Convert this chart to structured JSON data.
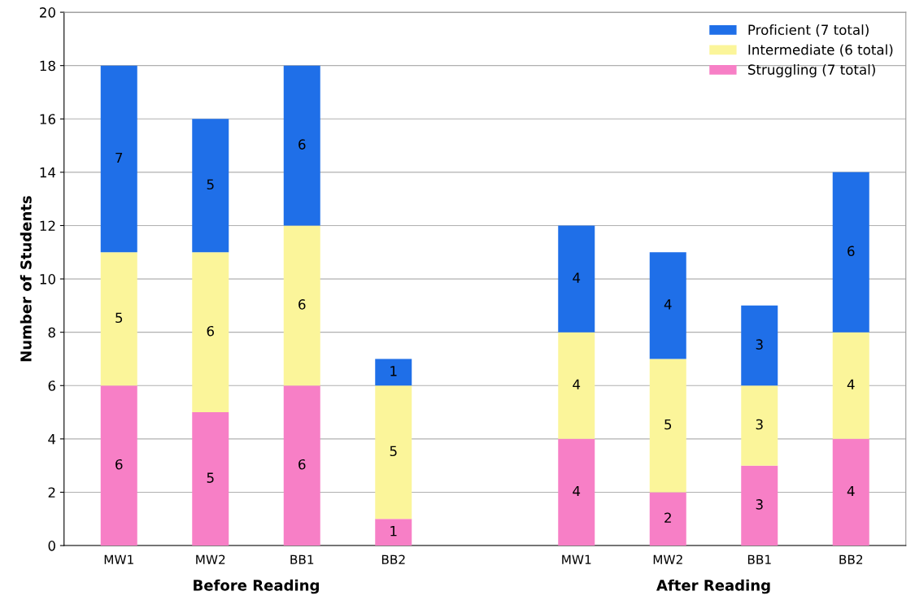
{
  "chart_data": {
    "type": "bar",
    "stacked": true,
    "ylabel": "Number of Students",
    "categories": [
      "MW1",
      "MW2",
      "BB1",
      "BB2",
      null,
      "MW1",
      "MW2",
      "BB1",
      "BB2"
    ],
    "series": [
      {
        "name": "Struggling (7 total)",
        "color": "#f77fc6",
        "values": [
          6,
          5,
          6,
          1,
          null,
          4,
          2,
          3,
          4
        ]
      },
      {
        "name": "Intermediate (6 total)",
        "color": "#fbf59a",
        "values": [
          5,
          6,
          6,
          5,
          null,
          4,
          5,
          3,
          4
        ]
      },
      {
        "name": "Proficient (7 total)",
        "color": "#1f6fe8",
        "values": [
          7,
          5,
          6,
          1,
          null,
          4,
          4,
          3,
          6
        ]
      }
    ],
    "ylim": [
      0,
      20
    ],
    "yticks": [
      0,
      2,
      4,
      6,
      8,
      10,
      12,
      14,
      16,
      18,
      20
    ],
    "grid": "y",
    "legend": "top right",
    "data_labels": true,
    "annotations": [
      "Before Reading",
      "After Reading"
    ]
  }
}
